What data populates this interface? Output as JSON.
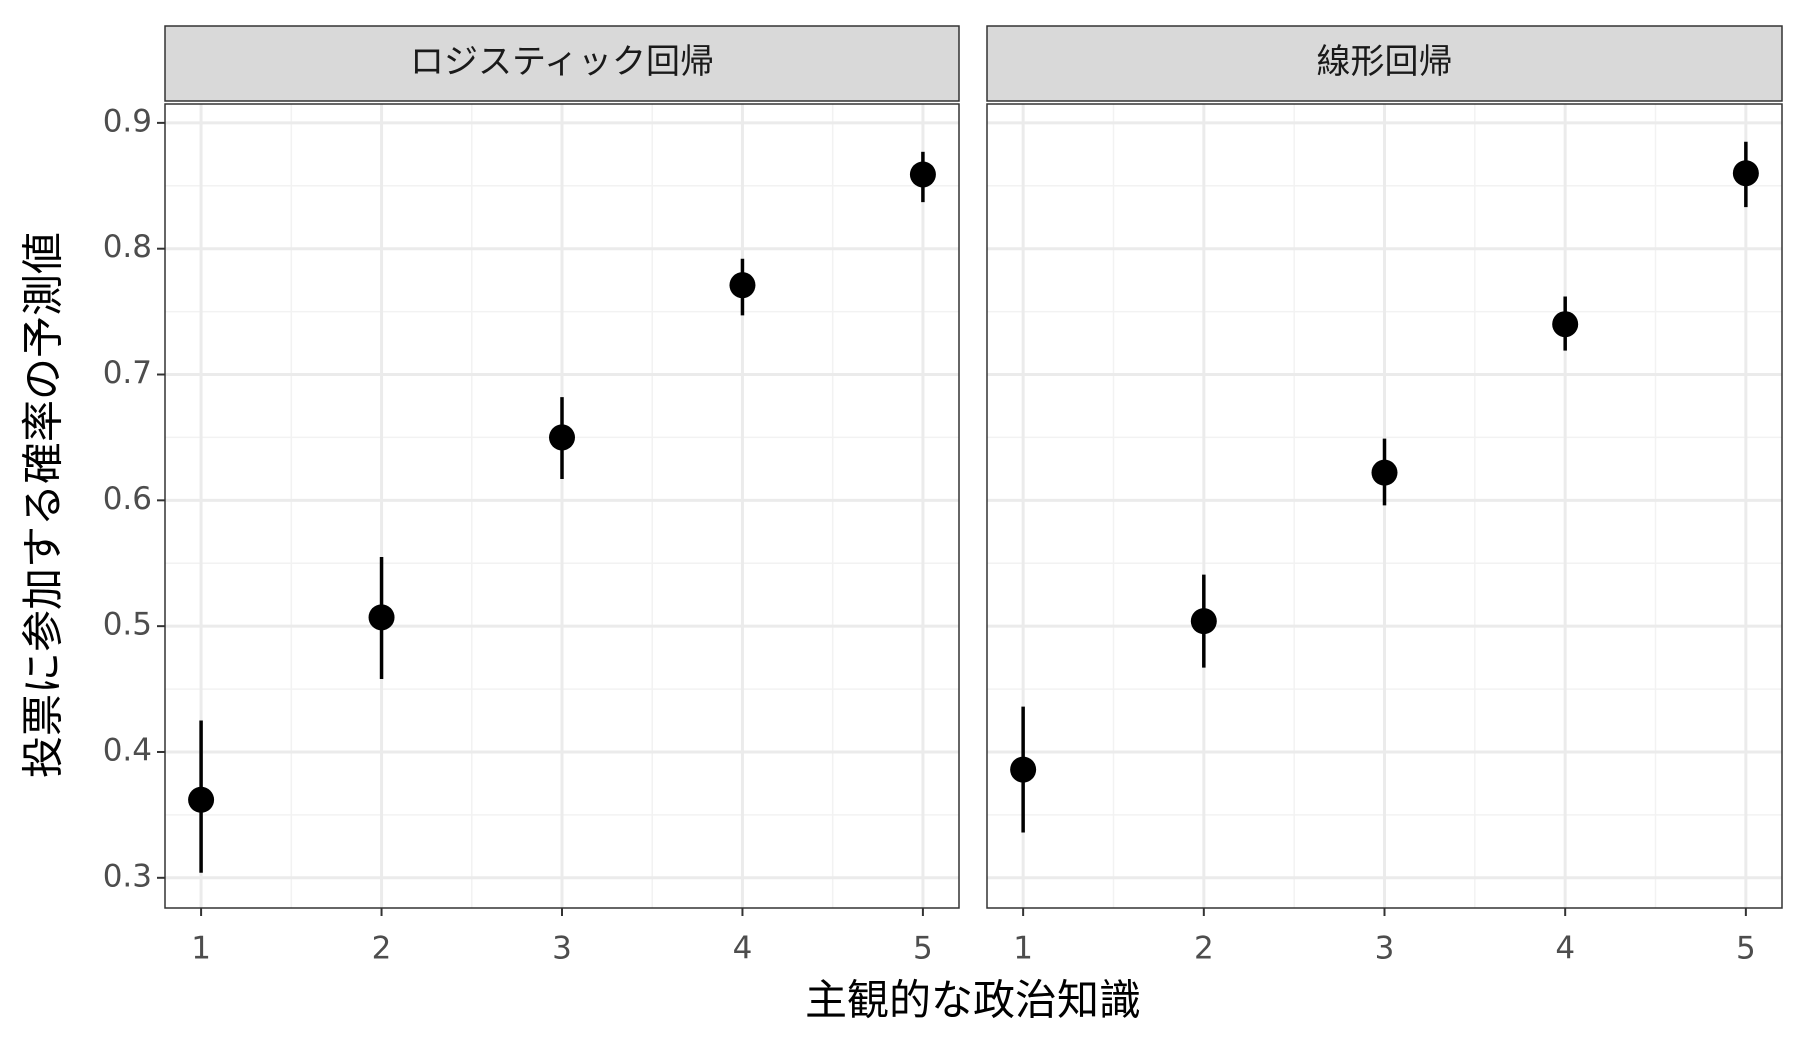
{
  "xlabel": "主観的な政治知識",
  "ylabel": "投票に参加する確率の予測値",
  "chart_data": [
    {
      "type": "pointrange",
      "title": "ロジスティック回帰",
      "color": "#000000",
      "x": [
        1,
        2,
        3,
        4,
        5
      ],
      "values": [
        0.362,
        0.507,
        0.65,
        0.771,
        0.859
      ],
      "lower": [
        0.304,
        0.458,
        0.617,
        0.747,
        0.837
      ],
      "upper": [
        0.425,
        0.555,
        0.682,
        0.792,
        0.877
      ],
      "xlim": [
        0.8,
        5.2
      ],
      "ylim": [
        0.276,
        0.915
      ],
      "xticks": [
        1,
        2,
        3,
        4,
        5
      ],
      "yticks": [
        0.3,
        0.4,
        0.5,
        0.6,
        0.7,
        0.8,
        0.9
      ],
      "grid": true
    },
    {
      "type": "pointrange",
      "title": "線形回帰",
      "color": "#000000",
      "x": [
        1,
        2,
        3,
        4,
        5
      ],
      "values": [
        0.386,
        0.504,
        0.622,
        0.74,
        0.86
      ],
      "lower": [
        0.336,
        0.467,
        0.596,
        0.719,
        0.833
      ],
      "upper": [
        0.436,
        0.541,
        0.649,
        0.762,
        0.885
      ],
      "xlim": [
        0.8,
        5.2
      ],
      "ylim": [
        0.276,
        0.915
      ],
      "xticks": [
        1,
        2,
        3,
        4,
        5
      ],
      "yticks": [
        0.3,
        0.4,
        0.5,
        0.6,
        0.7,
        0.8,
        0.9
      ],
      "grid": true
    }
  ]
}
